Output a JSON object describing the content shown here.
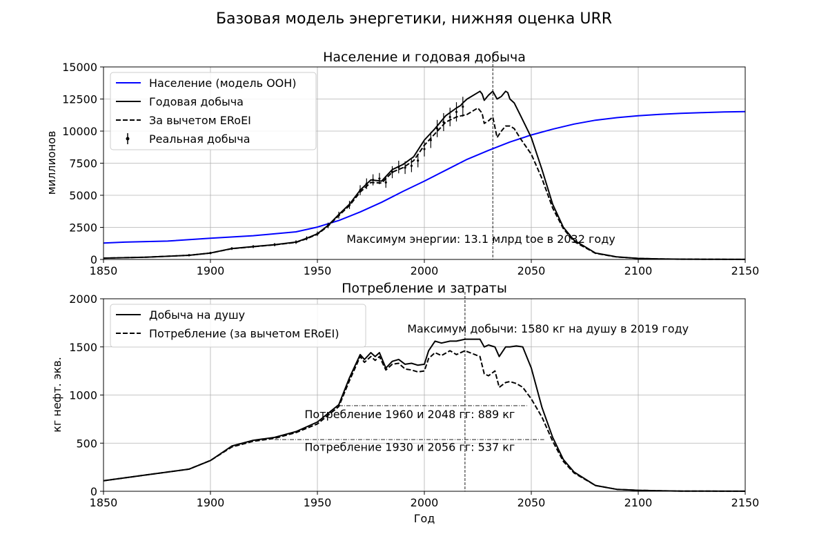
{
  "figure": {
    "suptitle": "Базовая модель энергетики, нижняя оценка URR"
  },
  "chart_data": [
    {
      "type": "line",
      "title": "Население и годовая добыча",
      "xlabel": "",
      "ylabel": "миллионов",
      "xlim": [
        1850,
        2150
      ],
      "ylim": [
        0,
        15000
      ],
      "xticks": [
        1850,
        1900,
        1950,
        2000,
        2050,
        2100,
        2150
      ],
      "yticks": [
        0,
        2500,
        5000,
        7500,
        10000,
        12500,
        15000
      ],
      "grid": true,
      "legend_position": "upper-left",
      "series": [
        {
          "name": "Население (модель ООН)",
          "color": "#0000ff",
          "style": "solid",
          "x": [
            1850,
            1860,
            1880,
            1900,
            1920,
            1940,
            1950,
            1960,
            1970,
            1980,
            1990,
            2000,
            2010,
            2020,
            2030,
            2040,
            2050,
            2060,
            2070,
            2080,
            2090,
            2100,
            2110,
            2120,
            2130,
            2140,
            2150
          ],
          "y": [
            1280,
            1350,
            1430,
            1650,
            1850,
            2150,
            2520,
            3030,
            3700,
            4450,
            5300,
            6100,
            6950,
            7800,
            8500,
            9150,
            9700,
            10150,
            10550,
            10850,
            11050,
            11200,
            11300,
            11380,
            11440,
            11490,
            11520
          ]
        },
        {
          "name": "Годовая добыча",
          "color": "#000000",
          "style": "solid",
          "x": [
            1850,
            1870,
            1890,
            1900,
            1910,
            1920,
            1930,
            1940,
            1945,
            1950,
            1955,
            1960,
            1965,
            1970,
            1975,
            1980,
            1985,
            1990,
            1995,
            2000,
            2005,
            2010,
            2015,
            2017,
            2018,
            2020,
            2025,
            2026,
            2027,
            2028,
            2030,
            2032,
            2034,
            2036,
            2038,
            2039,
            2040,
            2042,
            2045,
            2050,
            2055,
            2060,
            2065,
            2070,
            2080,
            2090,
            2100,
            2110,
            2120,
            2150
          ],
          "y": [
            100,
            180,
            320,
            500,
            850,
            1000,
            1150,
            1350,
            1650,
            2000,
            2650,
            3500,
            4300,
            5400,
            6200,
            6100,
            7000,
            7400,
            8000,
            9300,
            10200,
            11200,
            11800,
            12000,
            12200,
            12500,
            13000,
            13100,
            12900,
            12400,
            12800,
            13100,
            12500,
            12700,
            13100,
            13000,
            12500,
            12200,
            11200,
            9500,
            7000,
            4300,
            2500,
            1500,
            500,
            200,
            80,
            40,
            20,
            5
          ]
        },
        {
          "name": "За вычетом ERoEI",
          "color": "#000000",
          "style": "dashed",
          "x": [
            1850,
            1870,
            1890,
            1900,
            1910,
            1920,
            1930,
            1940,
            1945,
            1950,
            1955,
            1960,
            1965,
            1970,
            1975,
            1980,
            1985,
            1990,
            1995,
            2000,
            2005,
            2010,
            2015,
            2020,
            2025,
            2027,
            2028,
            2030,
            2032,
            2034,
            2036,
            2038,
            2040,
            2042,
            2045,
            2050,
            2055,
            2060,
            2065,
            2070,
            2080,
            2090,
            2100,
            2110,
            2120,
            2150
          ],
          "y": [
            100,
            180,
            320,
            500,
            840,
            990,
            1140,
            1330,
            1620,
            1960,
            2600,
            3420,
            4200,
            5250,
            6000,
            5950,
            6800,
            7150,
            7700,
            8900,
            9800,
            10700,
            11100,
            11300,
            11800,
            11400,
            10600,
            10800,
            11100,
            9500,
            10000,
            10400,
            10400,
            10200,
            9400,
            8200,
            6300,
            4000,
            2400,
            1400,
            480,
            190,
            80,
            40,
            20,
            5
          ]
        },
        {
          "name": "Реальная добыча",
          "color": "#000000",
          "style": "errorbar",
          "x": [
            1890,
            1900,
            1910,
            1920,
            1930,
            1940,
            1945,
            1950,
            1955,
            1960,
            1965,
            1970,
            1973,
            1976,
            1979,
            1982,
            1985,
            1988,
            1991,
            1994,
            1997,
            2000,
            2003,
            2006,
            2009,
            2012,
            2015,
            2018
          ],
          "y": [
            330,
            500,
            850,
            1000,
            1150,
            1350,
            1650,
            2000,
            2650,
            3450,
            4250,
            5400,
            5900,
            6200,
            6300,
            6000,
            6800,
            7200,
            7150,
            7300,
            7700,
            8600,
            9300,
            10200,
            10700,
            11100,
            11500,
            11900
          ]
        }
      ],
      "annotations": [
        {
          "text": "Максимум энергии: 13.1 млрд toe в 2032 году",
          "x": 2032,
          "y": 1200
        }
      ],
      "vline_x": 2032
    },
    {
      "type": "line",
      "title": "Потребление и затраты",
      "xlabel": "Год",
      "ylabel": "кг нефт. экв.",
      "xlim": [
        1850,
        2150
      ],
      "ylim": [
        0,
        2000
      ],
      "xticks": [
        1850,
        1900,
        1950,
        2000,
        2050,
        2100,
        2150
      ],
      "yticks": [
        0,
        500,
        1000,
        1500,
        2000
      ],
      "grid": true,
      "legend_position": "upper-left",
      "series": [
        {
          "name": "Добыча на душу",
          "color": "#000000",
          "style": "solid",
          "x": [
            1850,
            1870,
            1890,
            1900,
            1910,
            1920,
            1930,
            1940,
            1950,
            1960,
            1965,
            1970,
            1972,
            1975,
            1977,
            1979,
            1982,
            1985,
            1988,
            1991,
            1994,
            1997,
            2000,
            2002,
            2005,
            2008,
            2012,
            2015,
            2019,
            2026,
            2028,
            2030,
            2033,
            2035,
            2038,
            2040,
            2043,
            2046,
            2050,
            2055,
            2060,
            2065,
            2070,
            2080,
            2090,
            2100,
            2110,
            2120,
            2150
          ],
          "y": [
            110,
            170,
            230,
            320,
            470,
            530,
            560,
            620,
            720,
            900,
            1180,
            1420,
            1370,
            1440,
            1400,
            1440,
            1280,
            1350,
            1370,
            1320,
            1330,
            1310,
            1320,
            1460,
            1560,
            1540,
            1560,
            1560,
            1580,
            1580,
            1500,
            1520,
            1500,
            1400,
            1500,
            1500,
            1510,
            1500,
            1280,
            870,
            560,
            330,
            200,
            60,
            20,
            10,
            5,
            2,
            1
          ]
        },
        {
          "name": "Потребление (за вычетом ERoEI)",
          "color": "#000000",
          "style": "dashed",
          "x": [
            1850,
            1870,
            1890,
            1900,
            1910,
            1920,
            1930,
            1940,
            1950,
            1960,
            1965,
            1970,
            1972,
            1975,
            1977,
            1979,
            1982,
            1985,
            1988,
            1991,
            1994,
            1997,
            2000,
            2002,
            2005,
            2008,
            2012,
            2015,
            2019,
            2026,
            2028,
            2030,
            2033,
            2035,
            2038,
            2040,
            2043,
            2046,
            2050,
            2055,
            2060,
            2065,
            2070,
            2080,
            2090,
            2100,
            2110,
            2120,
            2150
          ],
          "y": [
            110,
            170,
            230,
            320,
            460,
            520,
            550,
            610,
            700,
            880,
            1150,
            1400,
            1340,
            1400,
            1360,
            1400,
            1260,
            1320,
            1330,
            1270,
            1260,
            1240,
            1250,
            1380,
            1440,
            1410,
            1460,
            1420,
            1460,
            1400,
            1220,
            1200,
            1250,
            1080,
            1130,
            1140,
            1120,
            1080,
            960,
            770,
            520,
            310,
            190,
            60,
            20,
            10,
            5,
            2,
            1
          ]
        }
      ],
      "annotations": [
        {
          "text": "Максимум добычи: 1580 кг на душу в 2019 году",
          "x": 1992,
          "y": 1650
        },
        {
          "text": "Потребление 1960 и 2048 гг: 889 кг",
          "x": 1944,
          "y": 760
        },
        {
          "text": "Потребление 1930 и 2056 гг: 537 кг",
          "x": 1944,
          "y": 420
        }
      ],
      "vline_x": 2019,
      "hlines": [
        {
          "y": 889,
          "x_from": 1960,
          "x_to": 2048
        },
        {
          "y": 537,
          "x_from": 1930,
          "x_to": 2056
        }
      ]
    }
  ]
}
